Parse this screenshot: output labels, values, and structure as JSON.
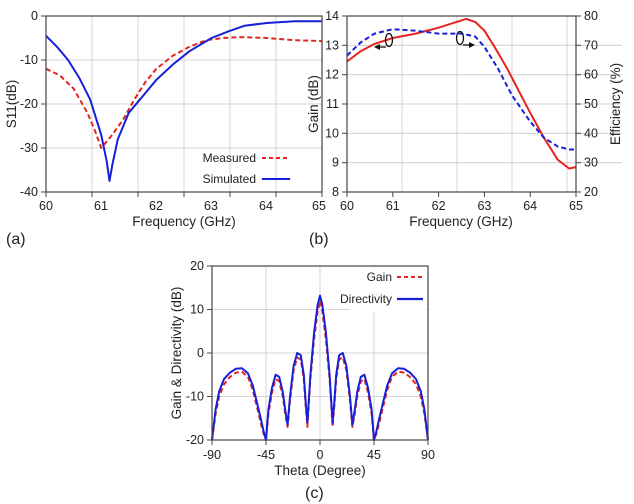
{
  "chart_data": [
    {
      "panel": "(a)",
      "type": "line",
      "xlabel": "Frequency (GHz)",
      "ylabel": "S11(dB)",
      "xlim": [
        60,
        65
      ],
      "ylim": [
        -40,
        0
      ],
      "xticks": [
        "60",
        "61",
        "62",
        "63",
        "64",
        "65"
      ],
      "yticks": [
        "-40",
        "-30",
        "-20",
        "-10",
        "0"
      ],
      "grid": true,
      "legend_position": "bottom-right",
      "series": [
        {
          "name": "Measured",
          "color": "#e52420",
          "dash": "dashed",
          "x": [
            60,
            60.25,
            60.5,
            60.75,
            60.9,
            61.0,
            61.2,
            61.4,
            61.6,
            61.8,
            62.0,
            62.3,
            62.6,
            62.9,
            63.2,
            63.5,
            64.0,
            64.5,
            65.0
          ],
          "y": [
            -12,
            -13.5,
            -16.5,
            -22,
            -26.5,
            -30,
            -27,
            -23.5,
            -19,
            -15,
            -12,
            -9,
            -7,
            -5.5,
            -5,
            -4.8,
            -5,
            -5.5,
            -5.7
          ]
        },
        {
          "name": "Simulated",
          "color": "#1520d8",
          "dash": "solid",
          "x": [
            60,
            60.2,
            60.4,
            60.6,
            60.8,
            61.0,
            61.1,
            61.15,
            61.2,
            61.3,
            61.5,
            61.8,
            62.0,
            62.3,
            62.6,
            63.0,
            63.3,
            63.6,
            64.0,
            64.5,
            65.0
          ],
          "y": [
            -4.5,
            -7,
            -10,
            -14,
            -19,
            -27,
            -33,
            -37.5,
            -34,
            -28,
            -22,
            -17.5,
            -14.5,
            -11,
            -8,
            -5,
            -3.5,
            -2.2,
            -1.6,
            -1.2,
            -1.2
          ]
        }
      ]
    },
    {
      "panel": "(b)",
      "type": "line",
      "xlabel": "Frequency (GHz)",
      "ylabel": "Gain (dB)",
      "ylabel_right": "Efficiency (%)",
      "xlim": [
        60,
        65
      ],
      "ylim": [
        8,
        14
      ],
      "ylim_right": [
        20,
        80
      ],
      "xticks": [
        "60",
        "61",
        "62",
        "63",
        "64",
        "65"
      ],
      "yticks": [
        "8",
        "9",
        "10",
        "11",
        "12",
        "13",
        "14"
      ],
      "yticks_right": [
        "20",
        "30",
        "40",
        "50",
        "60",
        "70",
        "80"
      ],
      "grid": true,
      "series": [
        {
          "axis": "left",
          "color": "#e52420",
          "dash": "solid",
          "x": [
            60,
            60.3,
            60.6,
            61.0,
            61.5,
            62.0,
            62.3,
            62.6,
            62.8,
            63.0,
            63.2,
            63.5,
            63.8,
            64.0,
            64.3,
            64.6,
            64.85,
            65.0
          ],
          "y": [
            12.45,
            12.8,
            13.05,
            13.25,
            13.4,
            13.6,
            13.75,
            13.9,
            13.8,
            13.5,
            13.0,
            12.2,
            11.3,
            10.7,
            9.85,
            9.1,
            8.8,
            8.85
          ]
        },
        {
          "axis": "right",
          "color": "#1520d8",
          "dash": "dashed",
          "x": [
            60,
            60.3,
            60.6,
            61.0,
            61.5,
            62.0,
            62.5,
            62.8,
            63.0,
            63.3,
            63.6,
            64.0,
            64.3,
            64.6,
            64.85,
            65.0
          ],
          "y": [
            66.5,
            71,
            74,
            75.5,
            75,
            74,
            74,
            73,
            69.5,
            62,
            53,
            44,
            38.5,
            35.5,
            34.5,
            34.5
          ]
        }
      ]
    },
    {
      "panel": "(c)",
      "type": "line",
      "xlabel": "Theta (Degree)",
      "ylabel": "Gain & Directivity (dB)",
      "xlim": [
        -90,
        90
      ],
      "ylim": [
        -20,
        20
      ],
      "xticks": [
        "-90",
        "-45",
        "0",
        "45",
        "90"
      ],
      "yticks": [
        "-20",
        "-10",
        "0",
        "10",
        "20"
      ],
      "grid": true,
      "legend_position": "top-right",
      "series": [
        {
          "name": "Gain",
          "color": "#e52420",
          "dash": "dashed",
          "x": [
            -90,
            -87,
            -84,
            -80,
            -75,
            -70,
            -65,
            -60,
            -56,
            -52,
            -49,
            -47,
            -45,
            -43,
            -40,
            -37,
            -34,
            -31,
            -29,
            -27,
            -25,
            -22,
            -19,
            -16,
            -13.5,
            -12,
            -10.5,
            -8,
            -5,
            -2,
            0,
            2,
            5,
            8,
            10.5,
            12,
            13.5,
            16,
            19,
            22,
            25,
            27,
            29,
            31,
            34,
            37,
            40,
            43,
            45,
            47,
            49,
            52,
            56,
            60,
            65,
            70,
            75,
            80,
            84,
            87,
            90
          ],
          "y": [
            -20,
            -14,
            -10,
            -7.2,
            -5.5,
            -4.5,
            -4.3,
            -5.5,
            -8.5,
            -13,
            -16.5,
            -18.5,
            -20,
            -14,
            -9,
            -6,
            -6.5,
            -10,
            -14,
            -17,
            -11,
            -4,
            -1,
            -1.5,
            -6,
            -12,
            -17,
            -6,
            3,
            9.5,
            12,
            9.5,
            3,
            -6,
            -17,
            -12,
            -6,
            -1.5,
            -1,
            -4,
            -11,
            -17,
            -14,
            -10,
            -6.5,
            -6,
            -9,
            -14,
            -20,
            -18.5,
            -16.5,
            -13,
            -8.5,
            -5.5,
            -4.3,
            -4.5,
            -5.5,
            -7.2,
            -10,
            -14,
            -20
          ]
        },
        {
          "name": "Directivity",
          "color": "#1520d8",
          "dash": "solid",
          "x": [
            -90,
            -87,
            -84,
            -80,
            -75,
            -70,
            -65,
            -60,
            -56,
            -52,
            -49,
            -47,
            -45,
            -43,
            -40,
            -37,
            -34,
            -31,
            -29,
            -27,
            -25,
            -22,
            -19,
            -16,
            -13.5,
            -12,
            -10.5,
            -8,
            -5,
            -2,
            0,
            2,
            5,
            8,
            10.5,
            12,
            13.5,
            16,
            19,
            22,
            25,
            27,
            29,
            31,
            34,
            37,
            40,
            43,
            45,
            47,
            49,
            52,
            56,
            60,
            65,
            70,
            75,
            80,
            84,
            87,
            90
          ],
          "y": [
            -20,
            -13,
            -8.8,
            -6,
            -4.5,
            -3.6,
            -3.5,
            -4.7,
            -7.5,
            -12,
            -15.5,
            -18,
            -20,
            -13,
            -8,
            -5,
            -5.5,
            -9,
            -13,
            -16.5,
            -10,
            -3,
            0,
            -0.5,
            -5,
            -11,
            -16,
            -5,
            4.5,
            11,
            13.2,
            11,
            4.5,
            -5,
            -16,
            -11,
            -5,
            -0.5,
            0,
            -3,
            -10,
            -16.5,
            -13,
            -9,
            -5.5,
            -5,
            -8,
            -13,
            -20,
            -18,
            -15.5,
            -12,
            -7.5,
            -4.7,
            -3.5,
            -3.6,
            -4.5,
            -6,
            -8.8,
            -13,
            -20
          ]
        }
      ]
    }
  ]
}
